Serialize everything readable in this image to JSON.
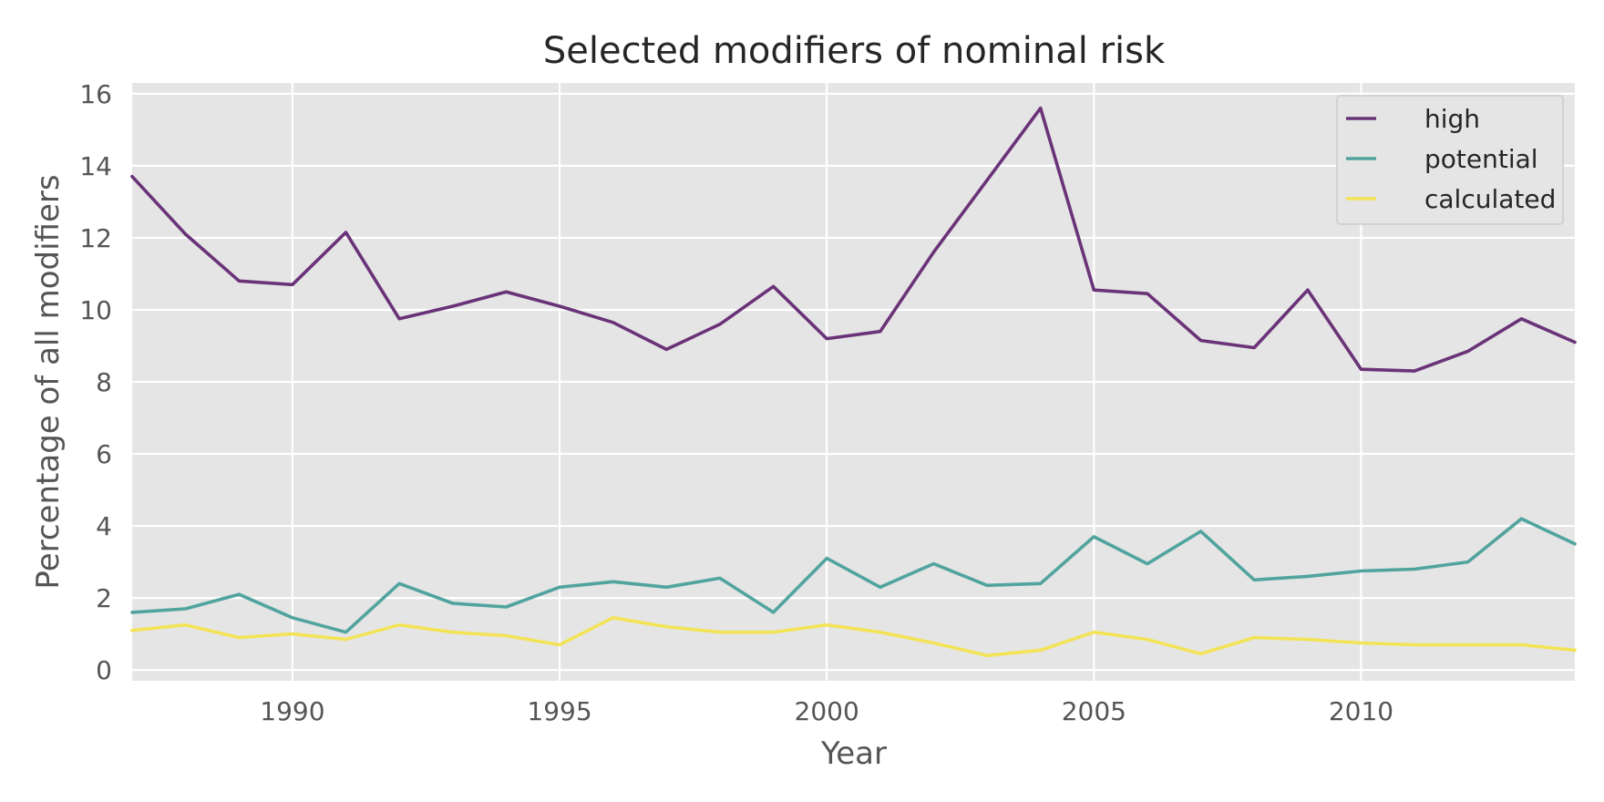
{
  "chart_data": {
    "type": "line",
    "title": "Selected modifiers of nominal risk",
    "xlabel": "Year",
    "ylabel": "Percentage of all modifiers",
    "xlim": [
      1987,
      2014
    ],
    "ylim": [
      -0.3,
      16.3
    ],
    "x_ticks": [
      1990,
      1995,
      2000,
      2005,
      2010
    ],
    "y_ticks": [
      0,
      2,
      4,
      6,
      8,
      10,
      12,
      14,
      16
    ],
    "grid": true,
    "background": "#e5e5e5",
    "legend": {
      "position": "top-right"
    },
    "x": [
      1987,
      1988,
      1989,
      1990,
      1991,
      1992,
      1993,
      1994,
      1995,
      1996,
      1997,
      1998,
      1999,
      2000,
      2001,
      2002,
      2003,
      2004,
      2005,
      2006,
      2007,
      2008,
      2009,
      2010,
      2011,
      2012,
      2013,
      2014
    ],
    "series": [
      {
        "name": "high",
        "color": "#6a3378",
        "values": [
          13.7,
          12.1,
          10.8,
          10.7,
          12.15,
          9.75,
          10.1,
          10.5,
          10.1,
          9.65,
          8.9,
          9.6,
          10.65,
          9.2,
          9.4,
          11.6,
          13.6,
          15.6,
          10.55,
          10.45,
          9.15,
          8.95,
          10.55,
          8.35,
          8.3,
          8.85,
          9.75,
          9.1
        ]
      },
      {
        "name": "potential",
        "color": "#51a49e",
        "values": [
          1.6,
          1.7,
          2.1,
          1.45,
          1.05,
          2.4,
          1.85,
          1.75,
          2.3,
          2.45,
          2.3,
          2.55,
          1.6,
          3.1,
          2.3,
          2.95,
          2.35,
          2.4,
          3.7,
          2.95,
          3.85,
          2.5,
          2.6,
          2.75,
          2.8,
          3.0,
          4.2,
          3.5
        ]
      },
      {
        "name": "calculated",
        "color": "#f2e357",
        "values": [
          1.1,
          1.25,
          0.9,
          1.0,
          0.85,
          1.25,
          1.05,
          0.95,
          0.7,
          1.45,
          1.2,
          1.05,
          1.05,
          1.25,
          1.05,
          0.75,
          0.4,
          0.55,
          1.05,
          0.85,
          0.45,
          0.9,
          0.85,
          0.75,
          0.7,
          0.7,
          0.7,
          0.55
        ]
      }
    ]
  }
}
